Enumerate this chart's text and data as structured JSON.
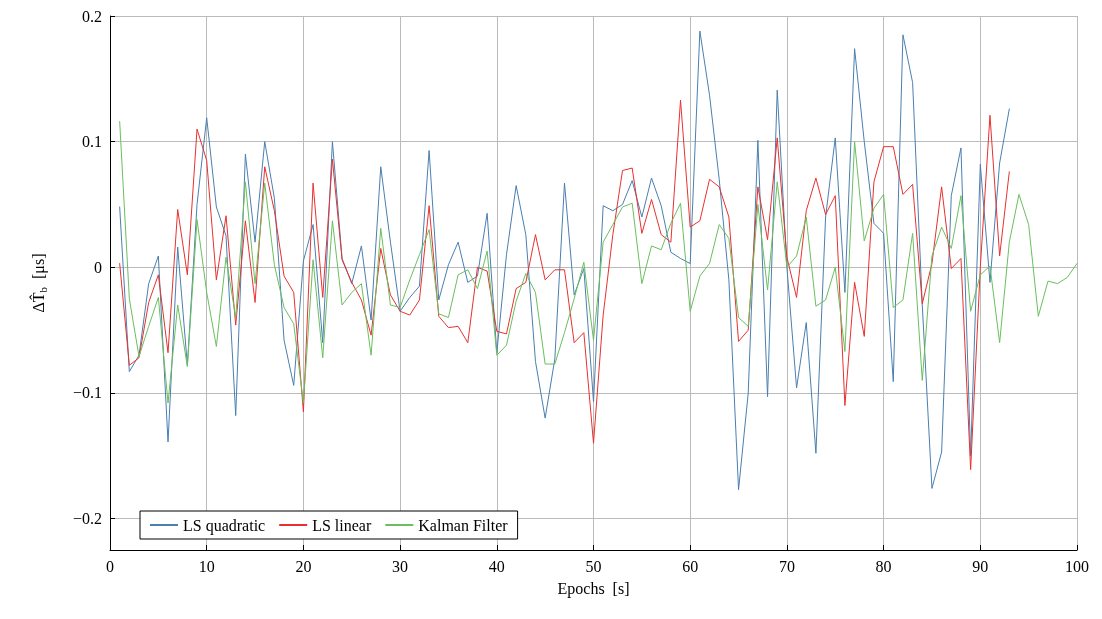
{
  "chart_data": {
    "type": "line",
    "xlabel": "Epochs  [s]",
    "ylabel": "ΔT̂$_{b}$  [μs]",
    "xlim": [
      0,
      100
    ],
    "xticks": [
      0,
      10,
      20,
      30,
      40,
      50,
      60,
      70,
      80,
      90,
      100
    ],
    "ylim": [
      -0.225,
      0.2
    ],
    "yticks": [
      {
        "value": -0.2,
        "label": "−0.2"
      },
      {
        "value": -0.1,
        "label": "−0.1"
      },
      0,
      0.1,
      0.2
    ],
    "grid": true,
    "legend": "bottom left",
    "marker": "none",
    "line_style": "solid",
    "series": [
      {
        "name": "LS quadratic",
        "color": "#4a7fb0",
        "x": [
          1,
          2,
          3,
          4,
          5,
          6,
          7,
          8,
          9,
          10,
          11,
          12,
          13,
          14,
          15,
          16,
          17,
          18,
          19,
          20,
          21,
          22,
          23,
          24,
          25,
          26,
          27,
          28,
          29,
          30,
          31,
          32,
          33,
          34,
          35,
          36,
          37,
          38,
          39,
          40,
          41,
          42,
          43,
          44,
          45,
          46,
          47,
          48,
          49,
          50,
          51,
          52,
          53,
          54,
          55,
          56,
          57,
          58,
          59,
          60,
          61,
          62,
          63,
          64,
          65,
          66,
          67,
          68,
          69,
          70,
          71,
          72,
          73,
          74,
          75,
          76,
          77,
          78,
          79,
          80,
          81,
          82,
          83,
          84,
          85,
          86,
          87,
          88,
          89,
          90,
          91,
          92,
          93
        ],
        "values": [
          0.048,
          -0.083,
          -0.07,
          -0.013,
          0.009,
          -0.139,
          0.016,
          -0.078,
          0.05,
          0.119,
          0.048,
          0.025,
          -0.118,
          0.09,
          0.02,
          0.1,
          0.055,
          -0.058,
          -0.094,
          0.005,
          0.034,
          -0.06,
          0.1,
          0.007,
          -0.013,
          0.017,
          -0.042,
          0.08,
          0.02,
          -0.035,
          -0.024,
          -0.015,
          0.093,
          -0.026,
          0.002,
          0.02,
          -0.012,
          -0.007,
          0.043,
          -0.068,
          0.01,
          0.065,
          0.026,
          -0.075,
          -0.12,
          -0.073,
          0.067,
          -0.022,
          -0.001,
          -0.107,
          0.049,
          0.045,
          0.05,
          0.069,
          0.04,
          0.071,
          0.049,
          0.012,
          0.007,
          0.003,
          0.188,
          0.137,
          0.07,
          -0.01,
          -0.177,
          -0.1,
          0.101,
          -0.103,
          0.141,
          0.0,
          -0.096,
          -0.044,
          -0.148,
          0.04,
          0.103,
          -0.02,
          0.174,
          0.1,
          0.035,
          0.027,
          -0.091,
          0.185,
          0.147,
          -0.03,
          -0.176,
          -0.147,
          0.057,
          0.095,
          -0.15,
          0.082,
          -0.012,
          0.083,
          0.126
        ]
      },
      {
        "name": "LS linear",
        "color": "#e8312f",
        "x": [
          1,
          2,
          3,
          4,
          5,
          6,
          7,
          8,
          9,
          10,
          11,
          12,
          13,
          14,
          15,
          16,
          17,
          18,
          19,
          20,
          21,
          22,
          23,
          24,
          25,
          26,
          27,
          28,
          29,
          30,
          31,
          32,
          33,
          34,
          35,
          36,
          37,
          38,
          39,
          40,
          41,
          42,
          43,
          44,
          45,
          46,
          47,
          48,
          49,
          50,
          51,
          52,
          53,
          54,
          55,
          56,
          57,
          58,
          59,
          60,
          61,
          62,
          63,
          64,
          65,
          66,
          67,
          68,
          69,
          70,
          71,
          72,
          73,
          74,
          75,
          76,
          77,
          78,
          79,
          80,
          81,
          82,
          83,
          84,
          85,
          86,
          87,
          88,
          89,
          90,
          91,
          92,
          93
        ],
        "values": [
          0.003,
          -0.078,
          -0.072,
          -0.028,
          -0.006,
          -0.068,
          0.046,
          -0.006,
          0.11,
          0.085,
          -0.01,
          0.041,
          -0.046,
          0.037,
          -0.028,
          0.08,
          0.045,
          -0.007,
          -0.02,
          -0.115,
          0.067,
          -0.024,
          0.086,
          0.006,
          -0.012,
          -0.026,
          -0.054,
          0.015,
          -0.022,
          -0.035,
          -0.038,
          -0.026,
          0.049,
          -0.039,
          -0.048,
          -0.047,
          -0.06,
          0.0,
          -0.003,
          -0.051,
          -0.053,
          -0.017,
          -0.012,
          0.026,
          -0.01,
          -0.002,
          -0.002,
          -0.06,
          -0.052,
          -0.14,
          -0.038,
          0.026,
          0.077,
          0.079,
          0.027,
          0.054,
          0.026,
          0.02,
          0.133,
          0.032,
          0.037,
          0.07,
          0.064,
          0.04,
          -0.059,
          -0.05,
          0.064,
          0.022,
          0.103,
          0.008,
          -0.024,
          0.045,
          0.071,
          0.042,
          0.057,
          -0.11,
          -0.012,
          -0.055,
          0.068,
          0.096,
          0.096,
          0.058,
          0.066,
          -0.029,
          0.003,
          0.064,
          -0.001,
          0.007,
          -0.161,
          0.0,
          0.121,
          0.009,
          0.076
        ]
      },
      {
        "name": "Kalman Filter",
        "color": "#6abf5e",
        "x": [
          1,
          2,
          3,
          4,
          5,
          6,
          7,
          8,
          9,
          10,
          11,
          12,
          13,
          14,
          15,
          16,
          17,
          18,
          19,
          20,
          21,
          22,
          23,
          24,
          25,
          26,
          27,
          28,
          29,
          30,
          31,
          32,
          33,
          34,
          35,
          36,
          37,
          38,
          39,
          40,
          41,
          42,
          43,
          44,
          45,
          46,
          47,
          48,
          49,
          50,
          51,
          52,
          53,
          54,
          55,
          56,
          57,
          58,
          59,
          60,
          61,
          62,
          63,
          64,
          65,
          66,
          67,
          68,
          69,
          70,
          71,
          72,
          73,
          74,
          75,
          76,
          77,
          78,
          79,
          80,
          81,
          82,
          83,
          84,
          85,
          86,
          87,
          88,
          89,
          90,
          91,
          92,
          93,
          94,
          95,
          96,
          97,
          98,
          99,
          100
        ],
        "values": [
          0.116,
          -0.025,
          -0.071,
          -0.047,
          -0.024,
          -0.108,
          -0.03,
          -0.079,
          0.038,
          -0.02,
          -0.063,
          0.008,
          -0.04,
          0.068,
          -0.013,
          0.067,
          0.002,
          -0.032,
          -0.045,
          -0.108,
          0.006,
          -0.072,
          0.037,
          -0.03,
          -0.02,
          -0.013,
          -0.07,
          0.031,
          -0.03,
          -0.032,
          -0.01,
          0.01,
          0.03,
          -0.037,
          -0.04,
          -0.006,
          -0.002,
          -0.017,
          0.013,
          -0.07,
          -0.062,
          -0.027,
          -0.005,
          -0.02,
          -0.077,
          -0.077,
          -0.052,
          -0.025,
          0.004,
          -0.058,
          0.02,
          0.034,
          0.048,
          0.051,
          -0.013,
          0.017,
          0.014,
          0.035,
          0.051,
          -0.035,
          -0.007,
          0.003,
          0.034,
          0.023,
          -0.04,
          -0.047,
          0.05,
          -0.018,
          0.068,
          0.0,
          0.009,
          0.04,
          -0.031,
          -0.026,
          0.0,
          -0.067,
          0.1,
          0.021,
          0.047,
          0.058,
          -0.032,
          -0.026,
          0.027,
          -0.09,
          0.009,
          0.032,
          0.015,
          0.057,
          -0.035,
          -0.006,
          0.001,
          -0.06,
          0.02,
          0.058,
          0.034,
          -0.039,
          -0.011,
          -0.013,
          -0.008,
          0.003
        ]
      }
    ]
  }
}
